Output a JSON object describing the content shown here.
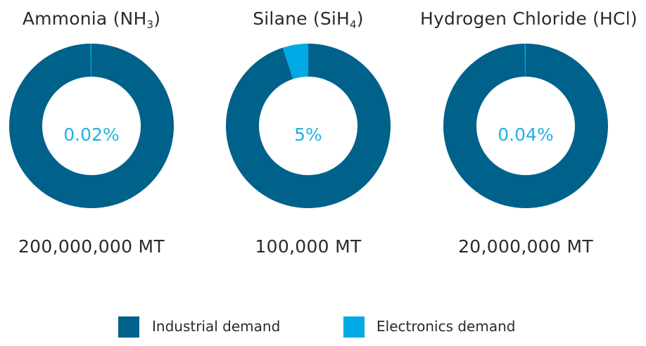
{
  "chart_data": [
    {
      "type": "pie",
      "title": "Ammonia (NH3)",
      "title_main": "Ammonia (NH",
      "title_sub": "3",
      "title_end": ")",
      "categories": [
        "Industrial demand",
        "Electronics demand"
      ],
      "values": [
        99.98,
        0.02
      ],
      "center_label": "0.02%",
      "volume_label": "200,000,000 MT"
    },
    {
      "type": "pie",
      "title": "Silane (SiH4)",
      "title_main": "Silane (SiH",
      "title_sub": "4",
      "title_end": ")",
      "categories": [
        "Industrial demand",
        "Electronics demand"
      ],
      "values": [
        95,
        5
      ],
      "center_label": "5%",
      "volume_label": "100,000 MT"
    },
    {
      "type": "pie",
      "title": "Hydrogen Chloride (HCl)",
      "title_main": "Hydrogen Chloride (HCl)",
      "title_sub": "",
      "title_end": "",
      "categories": [
        "Industrial demand",
        "Electronics demand"
      ],
      "values": [
        99.96,
        0.04
      ],
      "center_label": "0.04%",
      "volume_label": "20,000,000 MT"
    }
  ],
  "legend": [
    {
      "label": "Industrial demand",
      "color": "#00618b"
    },
    {
      "label": "Electronics demand",
      "color": "#00a9e6"
    }
  ],
  "colors": {
    "industrial": "#00618b",
    "electronics": "#00a9e6",
    "center_text": "#1fb1e6"
  }
}
